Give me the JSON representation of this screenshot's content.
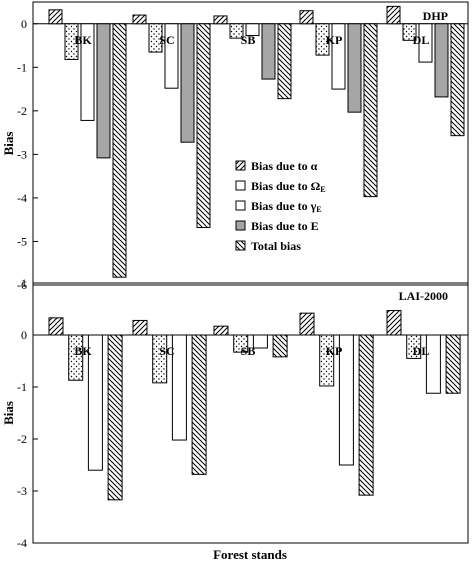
{
  "chart_data": [
    {
      "type": "bar",
      "title": "DHP",
      "ylabel": "Bias",
      "ylim": [
        -6,
        0.5
      ],
      "yticks": [
        0,
        -1,
        -2,
        -3,
        -4,
        -5,
        -6
      ],
      "categories": [
        "BK",
        "SC",
        "SB",
        "KP",
        "DL"
      ],
      "series": [
        {
          "name": "Bias due to α",
          "values": [
            0.32,
            0.2,
            0.18,
            0.3,
            0.4
          ]
        },
        {
          "name": "Bias due to ΩE",
          "values": [
            -0.82,
            -0.65,
            -0.33,
            -0.72,
            -0.38
          ]
        },
        {
          "name": "Bias due to γE",
          "values": [
            -2.22,
            -1.48,
            -0.27,
            -1.5,
            -0.88
          ]
        },
        {
          "name": "Bias due to E",
          "values": [
            -3.08,
            -2.72,
            -1.27,
            -2.03,
            -1.68
          ]
        },
        {
          "name": "Total bias",
          "values": [
            -5.82,
            -4.68,
            -1.72,
            -3.97,
            -2.57
          ]
        }
      ]
    },
    {
      "type": "bar",
      "title": "LAI-2000",
      "ylabel": "Bias",
      "ylim": [
        -4,
        1
      ],
      "yticks": [
        1,
        0,
        -1,
        -2,
        -3,
        -4
      ],
      "categories": [
        "BK",
        "SC",
        "SB",
        "KP",
        "DL"
      ],
      "series": [
        {
          "name": "Bias due to α",
          "values": [
            0.33,
            0.28,
            0.17,
            0.42,
            0.47
          ]
        },
        {
          "name": "Bias due to ΩE",
          "values": [
            -0.87,
            -0.92,
            -0.33,
            -0.98,
            -0.45
          ]
        },
        {
          "name": "Bias due to γE",
          "values": [
            -2.6,
            -2.02,
            -0.25,
            -2.5,
            -1.12
          ]
        },
        {
          "name": "Total bias",
          "values": [
            -3.17,
            -2.68,
            -0.42,
            -3.08,
            -1.12
          ]
        }
      ]
    }
  ],
  "xlabel": "Forest stands",
  "legend": {
    "placement": "top-panel-center",
    "items": [
      {
        "label": "Bias due to α",
        "pattern": "hatch-fwd"
      },
      {
        "label": "Bias due to ΩE",
        "pattern": "white"
      },
      {
        "label": "Bias due to γE",
        "pattern": "white"
      },
      {
        "label": "Bias due to E",
        "pattern": "gray"
      },
      {
        "label": "Total bias",
        "pattern": "hatch-back"
      }
    ]
  },
  "colors": {
    "gray_fill": "#a6a6a6",
    "ink": "#000000",
    "paper": "#ffffff"
  }
}
